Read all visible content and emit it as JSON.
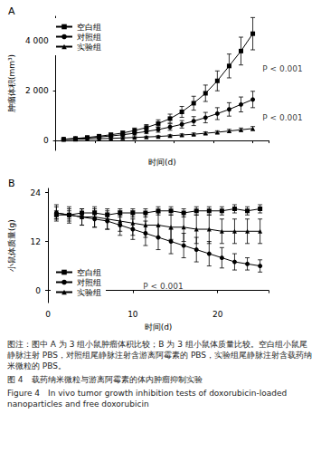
{
  "chart_data": [
    {
      "type": "line",
      "title": "A",
      "x_label": "时间(d)",
      "y_label": "肿瘤体积(mm³)",
      "xlim": [
        0,
        27
      ],
      "xticks": [
        0,
        5,
        10,
        15,
        20,
        25
      ],
      "ylim": [
        -400,
        5000
      ],
      "yticks": [
        0,
        {
          "value": 2000,
          "label": "2 000"
        },
        {
          "value": 4000,
          "label": "4 000"
        }
      ],
      "tick_labels": "y",
      "grid": false,
      "legend": "upper left",
      "x": [
        1,
        2.5,
        4,
        5.5,
        7,
        8.5,
        10,
        11.5,
        13,
        14.5,
        16,
        17.5,
        19,
        20.5,
        22,
        23.5,
        25
      ],
      "series": [
        {
          "name": "空白组",
          "color": "#000000",
          "marker": "square",
          "values": [
            50,
            80,
            120,
            170,
            230,
            300,
            400,
            520,
            680,
            880,
            1150,
            1500,
            1900,
            2400,
            3000,
            3600,
            4300
          ],
          "errors": [
            20,
            30,
            40,
            50,
            60,
            80,
            100,
            120,
            150,
            180,
            220,
            280,
            330,
            400,
            480,
            560,
            650
          ]
        },
        {
          "name": "对照组",
          "color": "#000000",
          "marker": "circle",
          "values": [
            50,
            70,
            100,
            140,
            180,
            230,
            290,
            360,
            440,
            540,
            650,
            780,
            920,
            1080,
            1250,
            1450,
            1650
          ],
          "errors": [
            20,
            25,
            30,
            40,
            50,
            60,
            70,
            90,
            110,
            130,
            150,
            180,
            210,
            240,
            270,
            300,
            330
          ]
        },
        {
          "name": "实验组",
          "color": "#000000",
          "marker": "triangle",
          "values": [
            40,
            50,
            60,
            70,
            85,
            100,
            120,
            140,
            160,
            190,
            220,
            250,
            290,
            330,
            380,
            430,
            480
          ],
          "errors": [
            15,
            15,
            20,
            20,
            25,
            25,
            30,
            30,
            35,
            40,
            45,
            50,
            55,
            60,
            65,
            70,
            80
          ]
        }
      ],
      "annotations": [
        {
          "text": "P < 0.001",
          "x": 26,
          "y": 2900
        },
        {
          "text": "P < 0.001",
          "x": 26,
          "y": 900
        }
      ]
    },
    {
      "type": "line",
      "title": "B",
      "x_label": "时间(d)",
      "y_label": "小鼠体质量(g)",
      "xlim": [
        0,
        26
      ],
      "xticks": [
        0,
        10,
        20
      ],
      "ylim": [
        -3,
        25
      ],
      "yticks": [
        0,
        12,
        24
      ],
      "grid": false,
      "legend": "lower left",
      "x": [
        1,
        2.5,
        4,
        5.5,
        7,
        8.5,
        10,
        11.5,
        13,
        14.5,
        16,
        17.5,
        19,
        20.5,
        22,
        23.5,
        25
      ],
      "series": [
        {
          "name": "空白组",
          "color": "#000000",
          "marker": "square",
          "values": [
            18.5,
            18.5,
            19,
            19,
            18.5,
            19,
            19,
            19,
            19.5,
            19.5,
            19,
            19.5,
            19.5,
            19.5,
            20,
            19.5,
            20
          ],
          "errors": [
            1,
            1,
            1,
            1,
            1,
            1,
            1,
            1,
            1,
            1,
            1,
            1,
            1,
            1,
            1,
            1,
            1
          ]
        },
        {
          "name": "对照组",
          "color": "#000000",
          "marker": "circle",
          "values": [
            19,
            18.5,
            18,
            17.5,
            17,
            16,
            15,
            14,
            13,
            12,
            11,
            10,
            9,
            8,
            7,
            6.5,
            6
          ],
          "errors": [
            1.5,
            1.5,
            2,
            2,
            2,
            2.5,
            2.5,
            3,
            3,
            3,
            3,
            3,
            3,
            2.5,
            2,
            1.5,
            1.5
          ]
        },
        {
          "name": "实验组",
          "color": "#000000",
          "marker": "triangle",
          "values": [
            19,
            18.5,
            18,
            18,
            17.5,
            17,
            16.5,
            16,
            16,
            15.5,
            15.5,
            15,
            15,
            14.5,
            14.5,
            14.5,
            14.5
          ],
          "errors": [
            2,
            2,
            2,
            2.5,
            2.5,
            2.5,
            3,
            3,
            3,
            3,
            3.5,
            3.5,
            3.5,
            3,
            3,
            3,
            3
          ]
        }
      ],
      "annotations": [
        {
          "text": "P < 0.001",
          "x": 11,
          "y": 1
        }
      ]
    }
  ],
  "caption": {
    "note": "图注：图中 A 为 3 组小鼠肿瘤体积比较；B 为 3 组小鼠体质量比较。空白组小鼠尾静脉注射 PBS，对照组尾静脉注射含游离阿霉素的 PBS，实验组尾静脉注射含载药纳米微粒的 PBS。",
    "title_cn": "图 4　载药纳米微粒与游离阿霉素的体内肿瘤抑制实验",
    "title_en": "Figure 4　In vivo tumor growth inhibition tests of doxorubicin-loaded nanoparticles and free doxorubicin"
  }
}
